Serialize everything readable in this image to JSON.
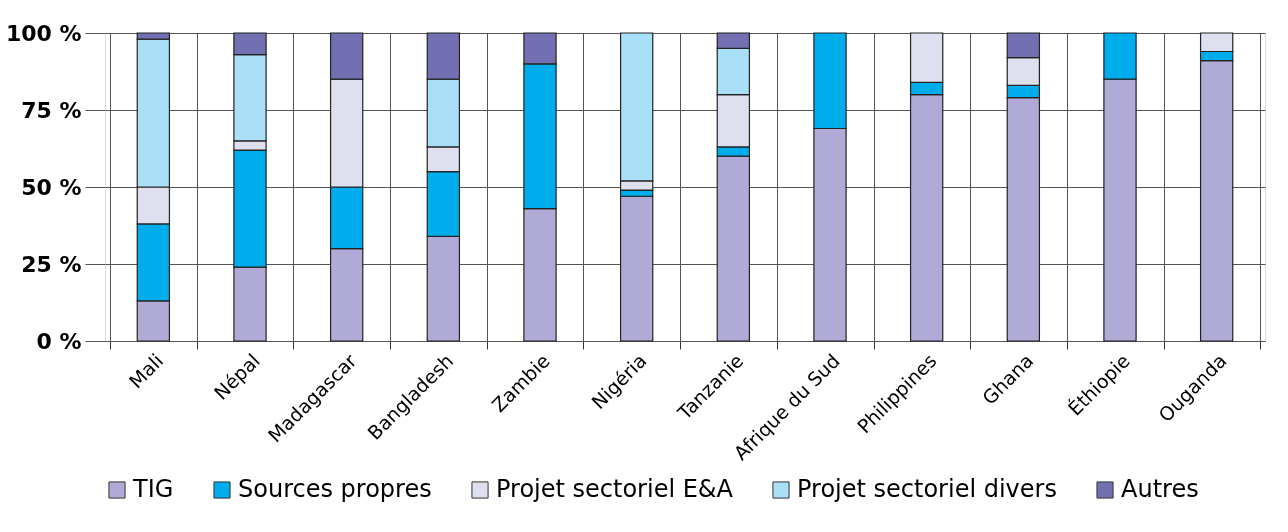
{
  "chart_data": {
    "type": "bar",
    "stacked": true,
    "categories": [
      "Mali",
      "Népal",
      "Madagascar",
      "Bangladesh",
      "Zambie",
      "Nigéria",
      "Tanzanie",
      "Afrique du Sud",
      "Philippines",
      "Ghana",
      "Éthiopie",
      "Ouganda"
    ],
    "series": [
      {
        "name": "TIG",
        "color": "#b0aad6",
        "values": [
          13,
          24,
          30,
          34,
          43,
          47,
          60,
          69,
          80,
          79,
          85,
          91
        ]
      },
      {
        "name": "Sources propres",
        "color": "#00adec",
        "values": [
          25,
          38,
          20,
          21,
          47,
          2,
          3,
          31,
          4,
          4,
          15,
          3
        ]
      },
      {
        "name": "Projet sectoriel E&A",
        "color": "#dee0ef",
        "values": [
          12,
          3,
          35,
          8,
          0,
          3,
          17,
          0,
          16,
          9,
          0,
          6
        ]
      },
      {
        "name": "Projet sectoriel divers",
        "color": "#aadff8",
        "values": [
          48,
          28,
          0,
          22,
          0,
          48,
          15,
          0,
          0,
          0,
          0,
          0
        ]
      },
      {
        "name": "Autres",
        "color": "#7270b2",
        "values": [
          2,
          7,
          15,
          15,
          10,
          0,
          5,
          0,
          0,
          8,
          0,
          0
        ]
      }
    ],
    "ylim": [
      0,
      100
    ],
    "yticks": [
      {
        "value": 0,
        "label": "0 %"
      },
      {
        "value": 25,
        "label": "25 %"
      },
      {
        "value": 50,
        "label": "50 %"
      },
      {
        "value": 75,
        "label": "75 %"
      },
      {
        "value": 100,
        "label": "100 %"
      }
    ],
    "grid": true,
    "legend": "bottom"
  }
}
